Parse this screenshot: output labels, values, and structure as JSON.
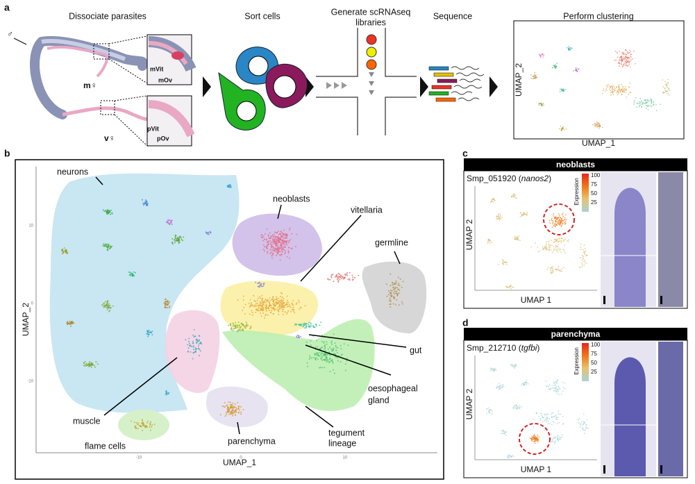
{
  "panel_a": {
    "label": "a",
    "steps": {
      "dissociate": "Dissociate parasites",
      "sort": "Sort cells",
      "libraries": [
        "Generate scRNAseq",
        "libraries"
      ],
      "sequence": "Sequence",
      "clustering": "Perform clustering"
    },
    "worm_labels": {
      "male": "♂",
      "mated_female": "m♀",
      "virgin_female": "v♀",
      "mvit": "mVit",
      "mov": "mOv",
      "pvit": "pVit",
      "pov": "pOv"
    },
    "umap": {
      "y_label": "UMAP_2",
      "x_label": "UMAP_1"
    }
  },
  "panel_b": {
    "label": "b",
    "annotations": {
      "neurons": "neurons",
      "neoblasts": "neoblasts",
      "vitellaria": "vitellaria",
      "germline": "germline",
      "gut": "gut",
      "oesophageal_gland": [
        "oesophageal",
        "gland"
      ],
      "tegument_lineage": [
        "tegument",
        "lineage"
      ],
      "parenchyma": "parenchyma",
      "muscle": "muscle",
      "flame_cells": "flame cells"
    },
    "y_label": "UMAP_2",
    "x_label": "UMAP_1",
    "y_ticks": [
      "10",
      "0",
      "-10"
    ],
    "x_ticks": [
      "-10",
      "0",
      "10"
    ]
  },
  "panel_c": {
    "label": "c",
    "header": "neoblasts",
    "gene_prefix": "Smp_051920 (",
    "gene_name": "nanos2",
    "gene_suffix": ")",
    "colorbar_title": "Expression",
    "colorbar_ticks": [
      "100",
      "75",
      "50",
      "25"
    ],
    "y_label": "UMAP 2",
    "x_label": "UMAP 1"
  },
  "panel_d": {
    "label": "d",
    "header": "parenchyma",
    "gene_prefix": "Smp_212710 (",
    "gene_name": "tgfbi",
    "gene_suffix": ")",
    "colorbar_title": "Expression",
    "colorbar_ticks": [
      "100",
      "75",
      "50",
      "25"
    ],
    "y_label": "UMAP 2",
    "x_label": "UMAP 1"
  }
}
